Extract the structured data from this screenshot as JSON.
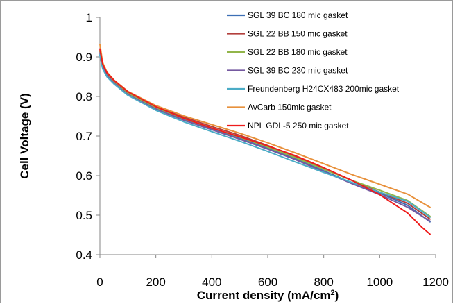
{
  "chart_data": {
    "type": "line",
    "title": "",
    "xlabel": "Current density (mA/cm²)",
    "ylabel": "Cell Voltage (V)",
    "xlim": [
      0,
      1200
    ],
    "ylim": [
      0.4,
      1.0
    ],
    "xticks": [
      "0",
      "200",
      "400",
      "600",
      "800",
      "1000",
      "1200"
    ],
    "yticks": [
      "0.4",
      "0.5",
      "0.6",
      "0.7",
      "0.8",
      "0.9",
      "1"
    ],
    "grid": false,
    "legend_position": "top-right",
    "series": [
      {
        "name": "SGL 39 BC 180 mic gasket",
        "color": "#3d6fb5",
        "points": [
          [
            0,
            0.905
          ],
          [
            10,
            0.872
          ],
          [
            25,
            0.852
          ],
          [
            50,
            0.835
          ],
          [
            100,
            0.807
          ],
          [
            200,
            0.77
          ],
          [
            300,
            0.741
          ],
          [
            400,
            0.717
          ],
          [
            500,
            0.694
          ],
          [
            600,
            0.669
          ],
          [
            700,
            0.642
          ],
          [
            800,
            0.612
          ],
          [
            900,
            0.582
          ],
          [
            1000,
            0.556
          ],
          [
            1100,
            0.525
          ],
          [
            1180,
            0.483
          ]
        ]
      },
      {
        "name": "SGL 22 BB 150 mic gasket",
        "color": "#b3403d",
        "points": [
          [
            0,
            0.915
          ],
          [
            10,
            0.88
          ],
          [
            25,
            0.857
          ],
          [
            50,
            0.838
          ],
          [
            100,
            0.81
          ],
          [
            200,
            0.774
          ],
          [
            300,
            0.748
          ],
          [
            400,
            0.724
          ],
          [
            500,
            0.702
          ],
          [
            600,
            0.676
          ],
          [
            700,
            0.648
          ],
          [
            800,
            0.618
          ],
          [
            900,
            0.588
          ],
          [
            1000,
            0.558
          ],
          [
            1100,
            0.53
          ],
          [
            1180,
            0.49
          ]
        ]
      },
      {
        "name": "SGL 22 BB 180 mic gasket",
        "color": "#92b54a",
        "points": [
          [
            0,
            0.915
          ],
          [
            10,
            0.878
          ],
          [
            25,
            0.855
          ],
          [
            50,
            0.836
          ],
          [
            100,
            0.808
          ],
          [
            200,
            0.772
          ],
          [
            300,
            0.744
          ],
          [
            400,
            0.72
          ],
          [
            500,
            0.697
          ],
          [
            600,
            0.672
          ],
          [
            700,
            0.645
          ],
          [
            800,
            0.616
          ],
          [
            900,
            0.588
          ],
          [
            1000,
            0.563
          ],
          [
            1100,
            0.537
          ],
          [
            1180,
            0.497
          ]
        ]
      },
      {
        "name": "SGL 39 BC 230 mic gasket",
        "color": "#7559a0",
        "points": [
          [
            0,
            0.91
          ],
          [
            10,
            0.874
          ],
          [
            25,
            0.853
          ],
          [
            50,
            0.834
          ],
          [
            100,
            0.805
          ],
          [
            200,
            0.768
          ],
          [
            300,
            0.74
          ],
          [
            400,
            0.716
          ],
          [
            500,
            0.692
          ],
          [
            600,
            0.667
          ],
          [
            700,
            0.64
          ],
          [
            800,
            0.61
          ],
          [
            900,
            0.58
          ],
          [
            1000,
            0.552
          ],
          [
            1100,
            0.52
          ],
          [
            1180,
            0.485
          ]
        ]
      },
      {
        "name": "Freundenberg H24CX483 200mic gasket",
        "color": "#4bacc6",
        "points": [
          [
            0,
            0.905
          ],
          [
            10,
            0.87
          ],
          [
            25,
            0.85
          ],
          [
            50,
            0.832
          ],
          [
            100,
            0.803
          ],
          [
            200,
            0.765
          ],
          [
            300,
            0.736
          ],
          [
            400,
            0.711
          ],
          [
            500,
            0.687
          ],
          [
            600,
            0.661
          ],
          [
            700,
            0.634
          ],
          [
            800,
            0.608
          ],
          [
            900,
            0.583
          ],
          [
            1000,
            0.558
          ],
          [
            1100,
            0.535
          ],
          [
            1180,
            0.495
          ]
        ]
      },
      {
        "name": "AvCarb 150mic gasket",
        "color": "#e8913c",
        "points": [
          [
            0,
            0.932
          ],
          [
            10,
            0.886
          ],
          [
            25,
            0.862
          ],
          [
            50,
            0.842
          ],
          [
            100,
            0.813
          ],
          [
            200,
            0.777
          ],
          [
            300,
            0.751
          ],
          [
            400,
            0.729
          ],
          [
            500,
            0.707
          ],
          [
            600,
            0.683
          ],
          [
            700,
            0.657
          ],
          [
            800,
            0.63
          ],
          [
            900,
            0.603
          ],
          [
            1000,
            0.578
          ],
          [
            1100,
            0.553
          ],
          [
            1180,
            0.52
          ]
        ]
      },
      {
        "name": "NPL GDL-5 250 mic gasket",
        "color": "#ee1c1c",
        "points": [
          [
            0,
            0.92
          ],
          [
            10,
            0.882
          ],
          [
            25,
            0.86
          ],
          [
            50,
            0.841
          ],
          [
            100,
            0.812
          ],
          [
            200,
            0.774
          ],
          [
            300,
            0.745
          ],
          [
            400,
            0.72
          ],
          [
            500,
            0.698
          ],
          [
            600,
            0.675
          ],
          [
            700,
            0.65
          ],
          [
            800,
            0.62
          ],
          [
            900,
            0.588
          ],
          [
            1000,
            0.552
          ],
          [
            1100,
            0.505
          ],
          [
            1150,
            0.47
          ],
          [
            1180,
            0.452
          ]
        ]
      }
    ]
  }
}
